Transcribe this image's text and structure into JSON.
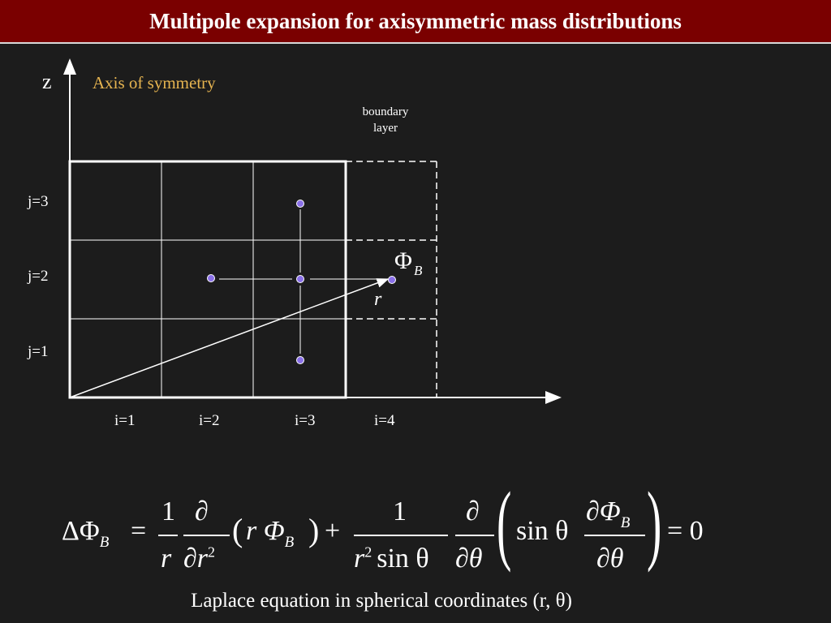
{
  "title": "Multipole expansion for axisymmetric mass distributions",
  "axis": {
    "z_label": "z",
    "symmetry_label": "Axis of symmetry"
  },
  "boundary": {
    "line1": "boundary",
    "line2": "layer"
  },
  "rows": [
    "j=3",
    "j=2",
    "j=1"
  ],
  "cols": [
    "i=1",
    "i=2",
    "i=3",
    "i=4"
  ],
  "phi": "Φ",
  "phi_sub": "B",
  "r_label": "r",
  "equation": {
    "delta": "ΔΦ",
    "sub": "B",
    "eq": "=",
    "one": "1",
    "r": "r",
    "partial": "∂",
    "dr2": "∂r",
    "sup2": "2",
    "lparen": "(",
    "rphi": "r Φ",
    "rparen": ")",
    "plus": "+",
    "sin_theta": "sin θ",
    "dtheta": "∂θ",
    "sin": "sin θ",
    "dphi": "∂Φ",
    "zero": "= 0"
  },
  "caption": "Laplace equation in spherical coordinates (r, θ)",
  "colors": {
    "title_bg": "#7a0000",
    "point": "#8a70e8",
    "boundary_label": "#e6b450"
  }
}
